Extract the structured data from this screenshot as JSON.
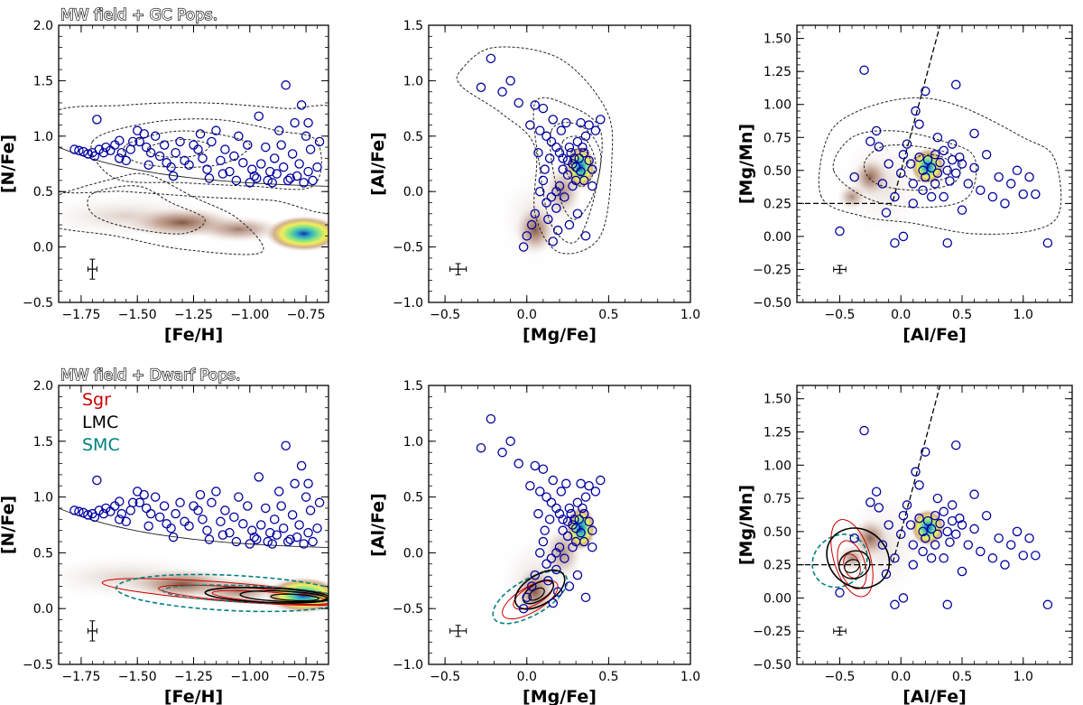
{
  "chart_data": [
    {
      "type": "scatter",
      "panel": "top-left",
      "title": "MW field + GC Pops.",
      "xlabel": "[Fe/H]",
      "ylabel": "[N/Fe]",
      "xlim": [
        -1.85,
        -0.65
      ],
      "ylim": [
        -0.5,
        2.0
      ],
      "xticks": [
        -1.75,
        -1.5,
        -1.25,
        -1.0,
        -0.75
      ],
      "xtick_labels": [
        "−1.75",
        "−1.50",
        "−1.25",
        "−1.00",
        "−0.75"
      ],
      "yticks": [
        -0.5,
        0.0,
        0.5,
        1.0,
        1.5,
        2.0
      ],
      "ytick_labels": [
        "−0.5",
        "0.0",
        "0.5",
        "1.0",
        "1.5",
        "2.0"
      ],
      "points": [
        [
          -1.78,
          0.88
        ],
        [
          -1.76,
          0.87
        ],
        [
          -1.74,
          0.86
        ],
        [
          -1.72,
          0.84
        ],
        [
          -1.7,
          0.85
        ],
        [
          -1.69,
          0.82
        ],
        [
          -1.67,
          0.88
        ],
        [
          -1.65,
          0.85
        ],
        [
          -1.64,
          0.9
        ],
        [
          -1.62,
          0.87
        ],
        [
          -1.6,
          0.92
        ],
        [
          -1.58,
          0.8
        ],
        [
          -1.57,
          0.85
        ],
        [
          -1.55,
          0.78
        ],
        [
          -1.53,
          0.88
        ],
        [
          -1.52,
          0.95
        ],
        [
          -1.5,
          1.05
        ],
        [
          -1.49,
          0.95
        ],
        [
          -1.47,
          1.02
        ],
        [
          -1.46,
          0.9
        ],
        [
          -1.44,
          0.85
        ],
        [
          -1.42,
          1.0
        ],
        [
          -1.4,
          0.82
        ],
        [
          -1.38,
          0.92
        ],
        [
          -1.37,
          0.76
        ],
        [
          -1.35,
          0.72
        ],
        [
          -1.33,
          0.85
        ],
        [
          -1.31,
          0.95
        ],
        [
          -1.29,
          0.78
        ],
        [
          -1.27,
          0.74
        ],
        [
          -1.25,
          0.92
        ],
        [
          -1.23,
          0.88
        ],
        [
          -1.21,
          0.8
        ],
        [
          -1.19,
          0.7
        ],
        [
          -1.17,
          0.95
        ],
        [
          -1.15,
          1.05
        ],
        [
          -1.13,
          0.78
        ],
        [
          -1.11,
          0.88
        ],
        [
          -1.09,
          0.68
        ],
        [
          -1.07,
          0.82
        ],
        [
          -1.05,
          1.0
        ],
        [
          -1.03,
          0.76
        ],
        [
          -1.01,
          0.92
        ],
        [
          -0.99,
          0.7
        ],
        [
          -0.97,
          0.62
        ],
        [
          -0.95,
          0.75
        ],
        [
          -0.93,
          0.9
        ],
        [
          -0.91,
          0.68
        ],
        [
          -0.89,
          0.8
        ],
        [
          -0.87,
          1.05
        ],
        [
          -0.85,
          0.72
        ],
        [
          -0.84,
          1.46
        ],
        [
          -0.82,
          0.62
        ],
        [
          -0.8,
          1.12
        ],
        [
          -0.78,
          0.75
        ],
        [
          -0.77,
          1.28
        ],
        [
          -0.76,
          0.58
        ],
        [
          -0.75,
          1.0
        ],
        [
          -0.74,
          0.68
        ],
        [
          -0.73,
          0.88
        ],
        [
          -0.72,
          0.6
        ],
        [
          -0.7,
          0.72
        ],
        [
          -0.69,
          0.95
        ],
        [
          -1.68,
          1.15
        ],
        [
          -1.45,
          0.74
        ],
        [
          -1.22,
          1.02
        ],
        [
          -1.12,
          0.66
        ],
        [
          -1.0,
          0.58
        ],
        [
          -0.96,
          1.18
        ],
        [
          -0.9,
          0.58
        ],
        [
          -0.86,
          0.92
        ],
        [
          -0.81,
          0.84
        ],
        [
          -1.58,
          0.96
        ],
        [
          -1.34,
          0.64
        ],
        [
          -1.18,
          0.62
        ],
        [
          -1.06,
          0.6
        ],
        [
          -0.98,
          0.64
        ],
        [
          -0.92,
          0.6
        ],
        [
          -0.88,
          0.66
        ],
        [
          -0.83,
          0.6
        ],
        [
          -0.79,
          0.64
        ],
        [
          -0.74,
          1.12
        ]
      ],
      "contours_note": "MW field density (filled, peak near [-0.75, 0.12]) with dotted GC-population contours",
      "n_rich_boundary": "curve from 0.9 at -1.85 to 0.52 at -0.65",
      "error_bar": {
        "x": -1.7,
        "y": -0.2,
        "xerr": 0.02,
        "yerr": 0.09
      }
    },
    {
      "type": "scatter",
      "panel": "top-middle",
      "xlabel": "[Mg/Fe]",
      "ylabel": "[Al/Fe]",
      "xlim": [
        -0.6,
        1.0
      ],
      "ylim": [
        -1.0,
        1.5
      ],
      "xticks": [
        -0.5,
        0.0,
        0.5,
        1.0
      ],
      "xtick_labels": [
        "−0.5",
        "0.0",
        "0.5",
        "1.0"
      ],
      "yticks": [
        -1.0,
        -0.5,
        0.0,
        0.5,
        1.0,
        1.5
      ],
      "ytick_labels": [
        "−1.0",
        "−0.5",
        "0.0",
        "0.5",
        "1.0",
        "1.5"
      ],
      "points": [
        [
          -0.22,
          1.2
        ],
        [
          -0.28,
          0.94
        ],
        [
          -0.1,
          1.0
        ],
        [
          -0.15,
          0.9
        ],
        [
          -0.05,
          0.8
        ],
        [
          0.05,
          0.78
        ],
        [
          0.1,
          0.75
        ],
        [
          0.02,
          0.6
        ],
        [
          0.08,
          0.55
        ],
        [
          0.12,
          0.5
        ],
        [
          0.15,
          0.45
        ],
        [
          0.18,
          0.4
        ],
        [
          0.2,
          0.35
        ],
        [
          0.22,
          0.3
        ],
        [
          0.25,
          0.28
        ],
        [
          0.28,
          0.25
        ],
        [
          0.3,
          0.22
        ],
        [
          0.32,
          0.3
        ],
        [
          0.35,
          0.35
        ],
        [
          0.38,
          0.28
        ],
        [
          0.4,
          0.2
        ],
        [
          0.33,
          0.18
        ],
        [
          0.3,
          0.1
        ],
        [
          0.28,
          0.05
        ],
        [
          0.25,
          0.15
        ],
        [
          0.22,
          0.2
        ],
        [
          0.2,
          0.05
        ],
        [
          0.18,
          0.0
        ],
        [
          0.15,
          -0.05
        ],
        [
          0.12,
          -0.1
        ],
        [
          0.1,
          0.1
        ],
        [
          0.08,
          0.0
        ],
        [
          0.05,
          -0.2
        ],
        [
          0.03,
          -0.3
        ],
        [
          0.0,
          -0.4
        ],
        [
          -0.02,
          -0.5
        ],
        [
          0.13,
          -0.25
        ],
        [
          0.18,
          -0.15
        ],
        [
          0.23,
          -0.05
        ],
        [
          0.27,
          0.35
        ],
        [
          0.31,
          0.45
        ],
        [
          0.36,
          0.5
        ],
        [
          0.42,
          0.55
        ],
        [
          0.45,
          0.65
        ],
        [
          0.38,
          0.6
        ],
        [
          0.34,
          0.4
        ],
        [
          0.29,
          0.3
        ],
        [
          0.26,
          0.4
        ],
        [
          0.21,
          0.55
        ],
        [
          0.16,
          0.65
        ],
        [
          0.14,
          0.3
        ],
        [
          0.11,
          0.2
        ],
        [
          0.07,
          0.35
        ],
        [
          0.36,
          -0.4
        ],
        [
          0.4,
          0.05
        ],
        [
          0.35,
          0.1
        ],
        [
          0.31,
          -0.2
        ],
        [
          0.26,
          -0.3
        ],
        [
          0.19,
          -0.35
        ],
        [
          0.16,
          -0.45
        ],
        [
          0.24,
          0.62
        ],
        [
          0.33,
          0.62
        ]
      ],
      "contours_note": "MW field density (peak near [0.33, 0.2]) with dotted GC-population contours",
      "error_bar": {
        "x": -0.42,
        "y": -0.7,
        "xerr": 0.05,
        "yerr": 0.05
      }
    },
    {
      "type": "scatter",
      "panel": "top-right",
      "xlabel": "[Al/Fe]",
      "ylabel": "[Mg/Mn]",
      "xlim": [
        -0.85,
        1.4
      ],
      "ylim": [
        -0.5,
        1.6
      ],
      "xticks": [
        -0.5,
        0.0,
        0.5,
        1.0
      ],
      "xtick_labels": [
        "−0.5",
        "0.0",
        "0.5",
        "1.0"
      ],
      "yticks": [
        -0.5,
        -0.25,
        0.0,
        0.25,
        0.5,
        0.75,
        1.0,
        1.25,
        1.5
      ],
      "ytick_labels": [
        "−0.50",
        "−0.25",
        "0.00",
        "0.25",
        "0.50",
        "0.75",
        "1.00",
        "1.25",
        "1.50"
      ],
      "points": [
        [
          -0.5,
          0.04
        ],
        [
          -0.38,
          0.45
        ],
        [
          -0.3,
          1.26
        ],
        [
          -0.25,
          0.72
        ],
        [
          -0.18,
          0.68
        ],
        [
          -0.15,
          0.4
        ],
        [
          -0.12,
          0.18
        ],
        [
          -0.1,
          0.55
        ],
        [
          -0.05,
          0.3
        ],
        [
          0.0,
          0.48
        ],
        [
          0.02,
          0.62
        ],
        [
          0.05,
          0.7
        ],
        [
          0.08,
          0.55
        ],
        [
          0.1,
          0.4
        ],
        [
          0.12,
          0.95
        ],
        [
          0.15,
          0.6
        ],
        [
          0.18,
          0.5
        ],
        [
          0.2,
          0.45
        ],
        [
          0.22,
          0.58
        ],
        [
          0.25,
          0.52
        ],
        [
          0.28,
          0.62
        ],
        [
          0.3,
          0.48
        ],
        [
          0.32,
          0.56
        ],
        [
          0.35,
          0.65
        ],
        [
          0.38,
          0.5
        ],
        [
          0.4,
          0.42
        ],
        [
          0.42,
          0.58
        ],
        [
          0.45,
          0.48
        ],
        [
          0.48,
          0.6
        ],
        [
          0.5,
          0.55
        ],
        [
          0.55,
          0.4
        ],
        [
          0.6,
          0.52
        ],
        [
          0.65,
          0.35
        ],
        [
          0.7,
          0.62
        ],
        [
          0.75,
          0.3
        ],
        [
          0.8,
          0.45
        ],
        [
          0.85,
          0.25
        ],
        [
          0.9,
          0.4
        ],
        [
          0.95,
          0.5
        ],
        [
          1.0,
          0.32
        ],
        [
          1.05,
          0.45
        ],
        [
          1.1,
          0.32
        ],
        [
          1.2,
          -0.05
        ],
        [
          0.38,
          -0.05
        ],
        [
          0.2,
          1.1
        ],
        [
          0.45,
          1.15
        ],
        [
          -0.05,
          -0.05
        ],
        [
          0.15,
          0.85
        ],
        [
          0.3,
          0.75
        ],
        [
          0.6,
          0.78
        ],
        [
          0.25,
          0.3
        ],
        [
          0.1,
          0.25
        ],
        [
          0.5,
          0.2
        ],
        [
          0.02,
          0.0
        ],
        [
          -0.2,
          0.8
        ],
        [
          0.18,
          0.35
        ],
        [
          0.28,
          0.4
        ],
        [
          0.35,
          0.3
        ],
        [
          0.42,
          0.7
        ]
      ],
      "contours_note": "MW field density (peak near [0.22, 0.53]) with dotted GC-population contours",
      "boundary_lines": "dashed: horizontal at 0.25 for [Al/Fe] < -0.07, then steep line upward",
      "error_bar": {
        "x": -0.5,
        "y": -0.25,
        "xerr": 0.05,
        "yerr": 0.03
      }
    },
    {
      "type": "scatter",
      "panel": "bottom-left",
      "title": "MW field + Dwarf Pops.",
      "xlabel": "[Fe/H]",
      "ylabel": "[N/Fe]",
      "xlim": [
        -1.85,
        -0.65
      ],
      "ylim": [
        -0.5,
        2.0
      ],
      "xticks": [
        -1.75,
        -1.5,
        -1.25,
        -1.0,
        -0.75
      ],
      "xtick_labels": [
        "−1.75",
        "−1.50",
        "−1.25",
        "−1.00",
        "−0.75"
      ],
      "yticks": [
        -0.5,
        0.0,
        0.5,
        1.0,
        1.5,
        2.0
      ],
      "ytick_labels": [
        "−0.5",
        "0.0",
        "0.5",
        "1.0",
        "1.5",
        "2.0"
      ],
      "legend": [
        {
          "label": "Sgr",
          "color": "#cc0000"
        },
        {
          "label": "LMC",
          "color": "#000000"
        },
        {
          "label": "SMC",
          "color": "#008080"
        }
      ],
      "legend_position": "top-left",
      "points_note": "same N-rich star sample as top-left panel",
      "contours_note": "Sgr (red), LMC (black), SMC (teal dashed) density contours over MW field density",
      "error_bar": {
        "x": -1.7,
        "y": -0.2,
        "xerr": 0.02,
        "yerr": 0.09
      }
    },
    {
      "type": "scatter",
      "panel": "bottom-middle",
      "xlabel": "[Mg/Fe]",
      "ylabel": "[Al/Fe]",
      "xlim": [
        -0.6,
        1.0
      ],
      "ylim": [
        -1.0,
        1.5
      ],
      "xticks": [
        -0.5,
        0.0,
        0.5,
        1.0
      ],
      "xtick_labels": [
        "−0.5",
        "0.0",
        "0.5",
        "1.0"
      ],
      "yticks": [
        -1.0,
        -0.5,
        0.0,
        0.5,
        1.0,
        1.5
      ],
      "ytick_labels": [
        "−1.0",
        "−0.5",
        "0.0",
        "0.5",
        "1.0",
        "1.5"
      ],
      "points_note": "same N-rich star sample as top-middle panel",
      "contours_note": "Sgr, LMC, SMC contours centred near [0.05, -0.35]",
      "error_bar": {
        "x": -0.42,
        "y": -0.7,
        "xerr": 0.05,
        "yerr": 0.05
      }
    },
    {
      "type": "scatter",
      "panel": "bottom-right",
      "xlabel": "[Al/Fe]",
      "ylabel": "[Mg/Mn]",
      "xlim": [
        -0.85,
        1.4
      ],
      "ylim": [
        -0.5,
        1.6
      ],
      "xticks": [
        -0.5,
        0.0,
        0.5,
        1.0
      ],
      "xtick_labels": [
        "−0.5",
        "0.0",
        "0.5",
        "1.0"
      ],
      "yticks": [
        -0.5,
        -0.25,
        0.0,
        0.25,
        0.5,
        0.75,
        1.0,
        1.25,
        1.5
      ],
      "ytick_labels": [
        "−0.50",
        "−0.25",
        "0.00",
        "0.25",
        "0.50",
        "0.75",
        "1.00",
        "1.25",
        "1.50"
      ],
      "points_note": "same N-rich star sample as top-right panel",
      "contours_note": "Sgr, LMC, SMC contours centred near [-0.40, 0.25]",
      "error_bar": {
        "x": -0.5,
        "y": -0.25,
        "xerr": 0.05,
        "yerr": 0.03
      }
    }
  ]
}
